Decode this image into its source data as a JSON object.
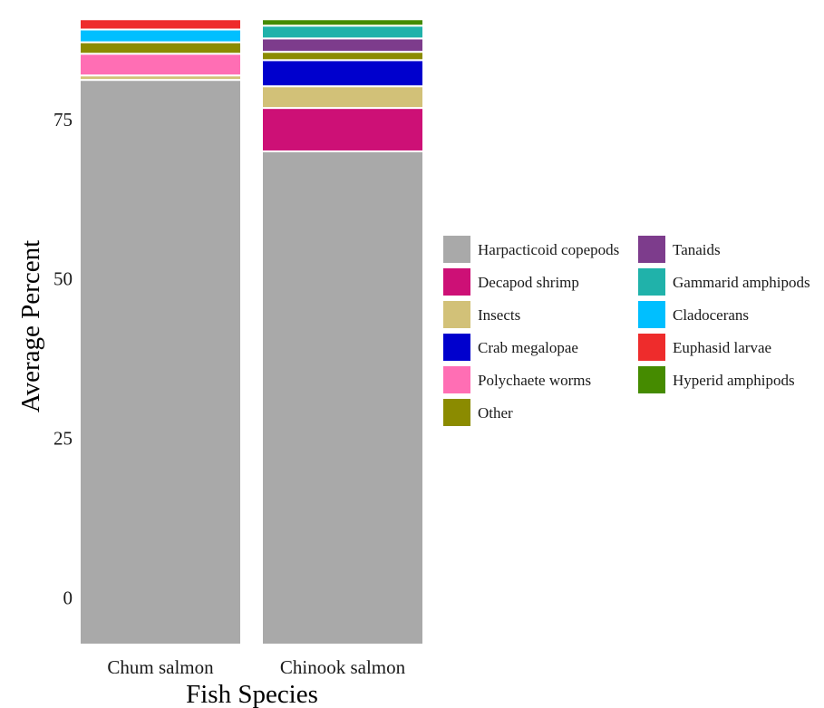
{
  "chart_data": {
    "type": "bar",
    "stacked": true,
    "xlabel": "Fish Species",
    "ylabel": "Average Percent",
    "ylim": [
      -7.3,
      92.3
    ],
    "yticks": [
      0,
      25,
      50,
      75
    ],
    "grid": false,
    "legend_position": "right",
    "categories": [
      "Chum salmon",
      "Chinook salmon"
    ],
    "series": [
      {
        "name": "Harpacticoid copepods",
        "color": "#A9A9A9",
        "values": [
          88.5,
          77.3
        ]
      },
      {
        "name": "Decapod shrimp",
        "color": "#CD1076",
        "values": [
          0,
          6.8
        ]
      },
      {
        "name": "Insects",
        "color": "#D2C178",
        "values": [
          0.7,
          3.4
        ]
      },
      {
        "name": "Crab megalopae",
        "color": "#0000CD",
        "values": [
          0,
          4.1
        ]
      },
      {
        "name": "Polychaete worms",
        "color": "#FF6EB4",
        "values": [
          3.4,
          0
        ]
      },
      {
        "name": "Other",
        "color": "#8B8B00",
        "values": [
          1.8,
          1.3
        ]
      },
      {
        "name": "Tanaids",
        "color": "#7D3C8C",
        "values": [
          0,
          2.1
        ]
      },
      {
        "name": "Gammarid amphipods",
        "color": "#20B2AA",
        "values": [
          0,
          2.0
        ]
      },
      {
        "name": "Cladocerans",
        "color": "#00BFFF",
        "values": [
          2.0,
          0
        ]
      },
      {
        "name": "Euphasid larvae",
        "color": "#EE2C2C",
        "values": [
          1.6,
          0
        ]
      },
      {
        "name": "Hyperid amphipods",
        "color": "#458B00",
        "values": [
          0,
          1.0
        ]
      }
    ]
  }
}
